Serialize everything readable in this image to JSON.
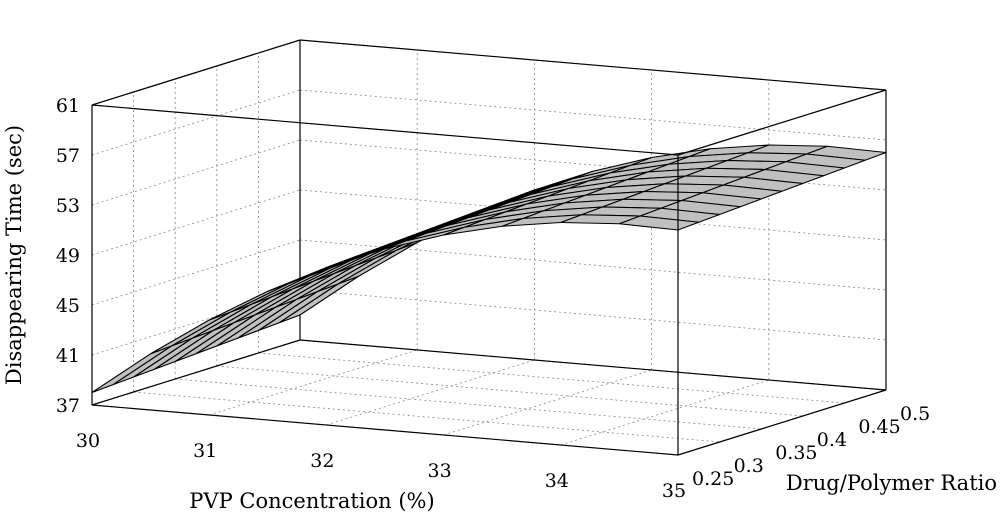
{
  "chart_data": {
    "type": "surface",
    "zlabel": "Disappearing Time (sec)",
    "xlabel": "PVP Concentration (%)",
    "ylabel": "Drug/Polymer Ratio",
    "x_ticks": [
      "30",
      "31",
      "32",
      "33",
      "34",
      "35"
    ],
    "y_ticks": [
      "0.25",
      "0.3",
      "0.35",
      "0.4",
      "0.45",
      "0.5"
    ],
    "z_ticks": [
      "37",
      "41",
      "45",
      "49",
      "53",
      "57",
      "61"
    ],
    "xlim": [
      30,
      35
    ],
    "ylim": [
      0.25,
      0.5
    ],
    "zlim": [
      37,
      61
    ],
    "grid": true,
    "x": [
      30,
      30.5,
      31,
      31.5,
      32,
      32.5,
      33,
      33.5,
      34,
      34.5,
      35
    ],
    "y": [
      0.25,
      0.275,
      0.3,
      0.325,
      0.35,
      0.375,
      0.4,
      0.425,
      0.45,
      0.475,
      0.5
    ],
    "z": [
      [
        38.0,
        41.5,
        44.6,
        47.3,
        49.6,
        51.5,
        53.0,
        54.1,
        54.8,
        55.1,
        55.0
      ],
      [
        38.1,
        41.6,
        44.7,
        47.4,
        49.7,
        51.6,
        53.1,
        54.2,
        54.9,
        55.2,
        55.1
      ],
      [
        38.2,
        41.7,
        44.8,
        47.5,
        49.8,
        51.7,
        53.2,
        54.3,
        55.0,
        55.3,
        55.2
      ],
      [
        38.3,
        41.8,
        44.9,
        47.6,
        49.9,
        51.8,
        53.3,
        54.4,
        55.1,
        55.4,
        55.3
      ],
      [
        38.4,
        41.9,
        45.0,
        47.7,
        50.0,
        51.9,
        53.4,
        54.5,
        55.2,
        55.5,
        55.4
      ],
      [
        38.5,
        42.0,
        45.1,
        47.8,
        50.1,
        52.0,
        53.5,
        54.6,
        55.3,
        55.6,
        55.5
      ],
      [
        38.6,
        42.1,
        45.2,
        47.9,
        50.2,
        52.1,
        53.6,
        54.7,
        55.4,
        55.7,
        55.6
      ],
      [
        38.7,
        42.2,
        45.3,
        48.0,
        50.3,
        52.2,
        53.7,
        54.8,
        55.5,
        55.8,
        55.7
      ],
      [
        38.8,
        42.3,
        45.4,
        48.1,
        50.4,
        52.3,
        53.8,
        54.9,
        55.6,
        55.9,
        55.8
      ],
      [
        38.9,
        42.4,
        45.5,
        48.2,
        50.5,
        52.4,
        53.9,
        55.0,
        55.7,
        56.0,
        55.9
      ],
      [
        39.0,
        42.5,
        45.6,
        48.3,
        50.6,
        52.5,
        54.0,
        55.1,
        55.8,
        56.1,
        56.0
      ]
    ]
  }
}
